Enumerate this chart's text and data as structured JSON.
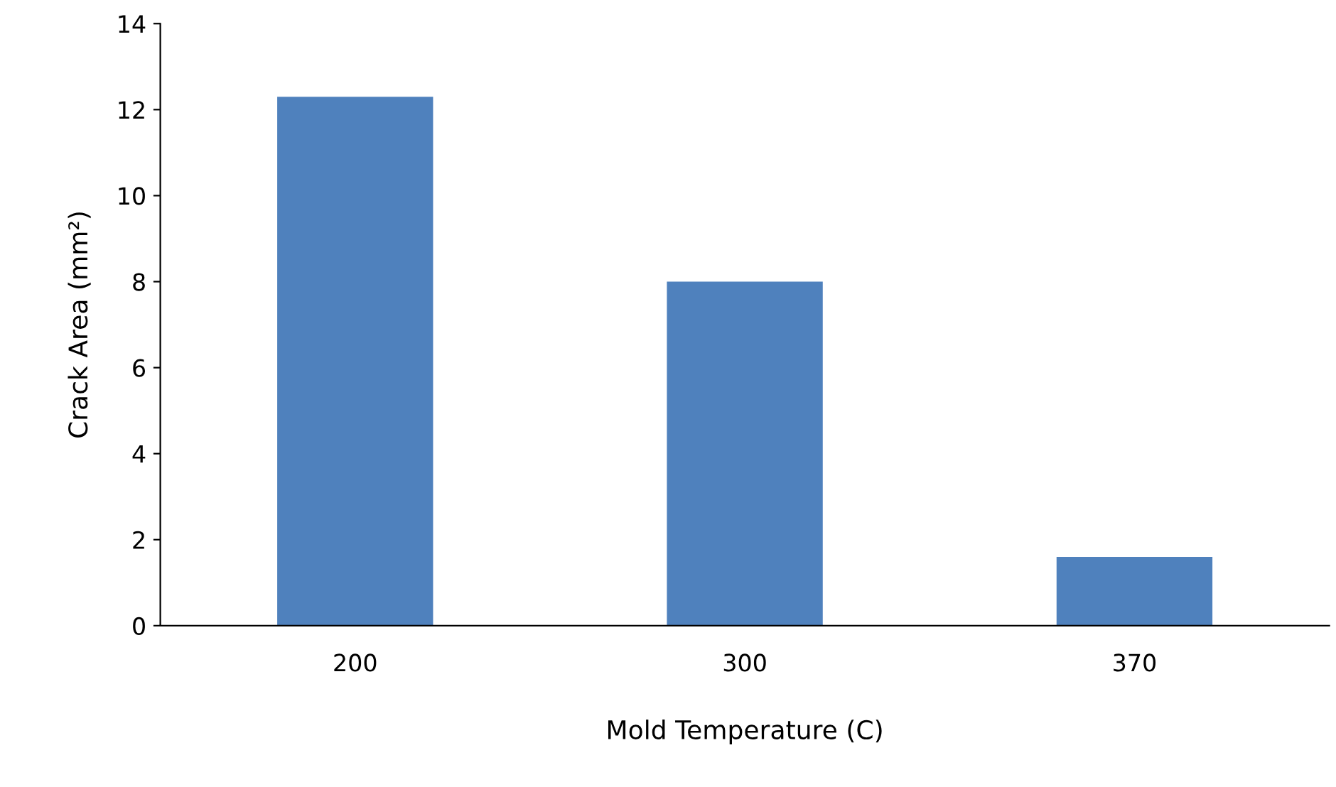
{
  "chart_data": {
    "type": "bar",
    "xlabel": "Mold Temperature (C)",
    "ylabel": "Crack Area (mm²)",
    "categories": [
      "200",
      "300",
      "370"
    ],
    "values": [
      12.3,
      8.0,
      1.6
    ],
    "color": "#4f81bd",
    "ylim": [
      0,
      14
    ],
    "yticks": [
      0,
      2,
      4,
      6,
      8,
      10,
      12,
      14
    ],
    "grid": false,
    "legend": false
  }
}
